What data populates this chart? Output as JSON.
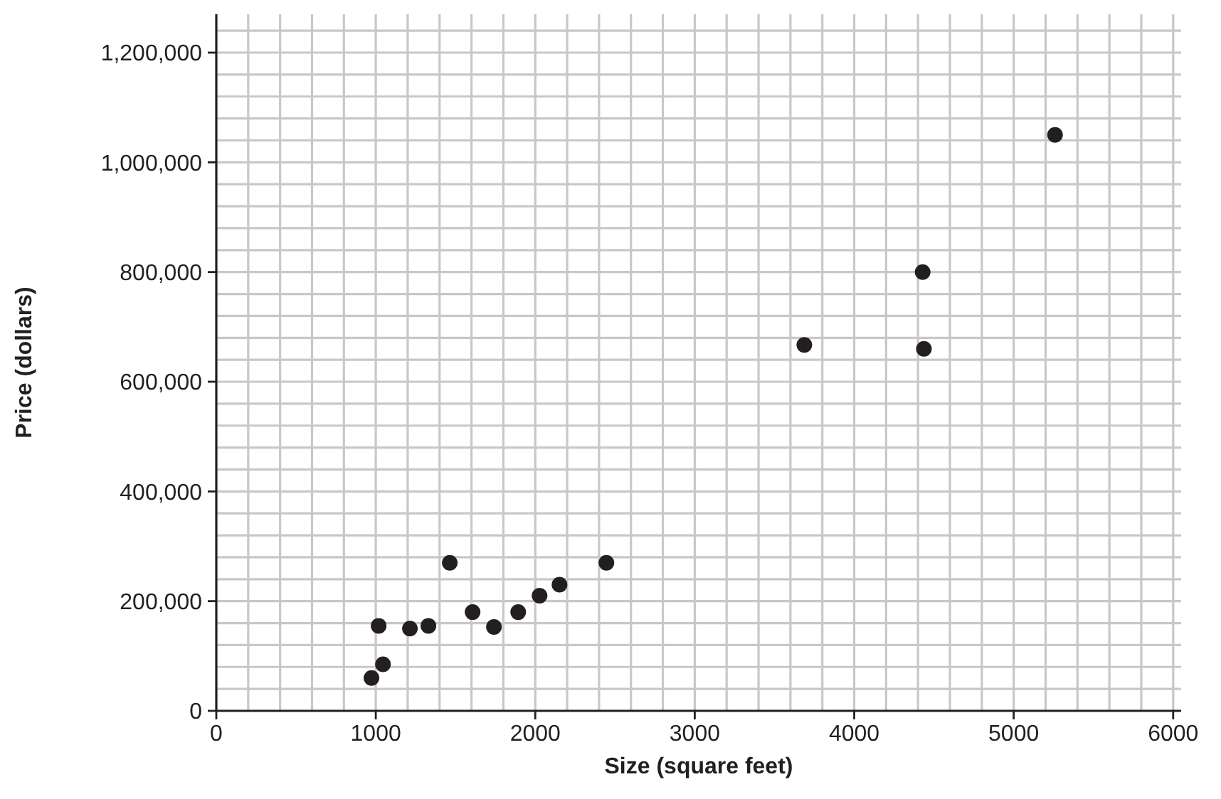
{
  "chart_data": {
    "type": "scatter",
    "xlabel": "Size (square feet)",
    "ylabel": "Price (dollars)",
    "x": [
      973,
      1018,
      1045,
      1214,
      1330,
      1464,
      1607,
      1741,
      1893,
      2027,
      2152,
      2446,
      3687,
      4429,
      4437,
      5259
    ],
    "series": [
      {
        "color": "#231f20",
        "values": [
          60000,
          155000,
          85000,
          150000,
          155000,
          270000,
          180000,
          153000,
          180000,
          210000,
          230000,
          270000,
          667000,
          800000,
          660000,
          1050000
        ]
      }
    ],
    "marker": "circle",
    "grid": true,
    "xlim": [
      0,
      6050
    ],
    "ylim": [
      0,
      1270000
    ],
    "xticks": [
      0,
      {
        "value": 200,
        "label": null
      },
      {
        "value": 400,
        "label": null
      },
      {
        "value": 600,
        "label": null
      },
      {
        "value": 800,
        "label": null
      },
      1000,
      {
        "value": 1200,
        "label": null
      },
      {
        "value": 1400,
        "label": null
      },
      {
        "value": 1600,
        "label": null
      },
      {
        "value": 1800,
        "label": null
      },
      2000,
      {
        "value": 2200,
        "label": null
      },
      {
        "value": 2400,
        "label": null
      },
      {
        "value": 2600,
        "label": null
      },
      {
        "value": 2800,
        "label": null
      },
      3000,
      {
        "value": 3200,
        "label": null
      },
      {
        "value": 3400,
        "label": null
      },
      {
        "value": 3600,
        "label": null
      },
      {
        "value": 3800,
        "label": null
      },
      4000,
      {
        "value": 4200,
        "label": null
      },
      {
        "value": 4400,
        "label": null
      },
      {
        "value": 4600,
        "label": null
      },
      {
        "value": 4800,
        "label": null
      },
      5000,
      {
        "value": 5200,
        "label": null
      },
      {
        "value": 5400,
        "label": null
      },
      {
        "value": 5600,
        "label": null
      },
      {
        "value": 5800,
        "label": null
      },
      6000
    ],
    "yticks": [
      0,
      {
        "value": 40000,
        "label": null
      },
      {
        "value": 80000,
        "label": null
      },
      {
        "value": 120000,
        "label": null
      },
      {
        "value": 160000,
        "label": null
      },
      {
        "value": 200000,
        "label": "200,000"
      },
      {
        "value": 240000,
        "label": null
      },
      {
        "value": 280000,
        "label": null
      },
      {
        "value": 320000,
        "label": null
      },
      {
        "value": 360000,
        "label": null
      },
      {
        "value": 400000,
        "label": "400,000"
      },
      {
        "value": 440000,
        "label": null
      },
      {
        "value": 480000,
        "label": null
      },
      {
        "value": 520000,
        "label": null
      },
      {
        "value": 560000,
        "label": null
      },
      {
        "value": 600000,
        "label": "600,000"
      },
      {
        "value": 640000,
        "label": null
      },
      {
        "value": 680000,
        "label": null
      },
      {
        "value": 720000,
        "label": null
      },
      {
        "value": 760000,
        "label": null
      },
      {
        "value": 800000,
        "label": "800,000"
      },
      {
        "value": 840000,
        "label": null
      },
      {
        "value": 880000,
        "label": null
      },
      {
        "value": 920000,
        "label": null
      },
      {
        "value": 960000,
        "label": null
      },
      {
        "value": 1000000,
        "label": "1,000,000"
      },
      {
        "value": 1040000,
        "label": null
      },
      {
        "value": 1080000,
        "label": null
      },
      {
        "value": 1120000,
        "label": null
      },
      {
        "value": 1160000,
        "label": null
      },
      {
        "value": 1200000,
        "label": "1,200,000"
      },
      {
        "value": 1240000,
        "label": null
      }
    ]
  }
}
